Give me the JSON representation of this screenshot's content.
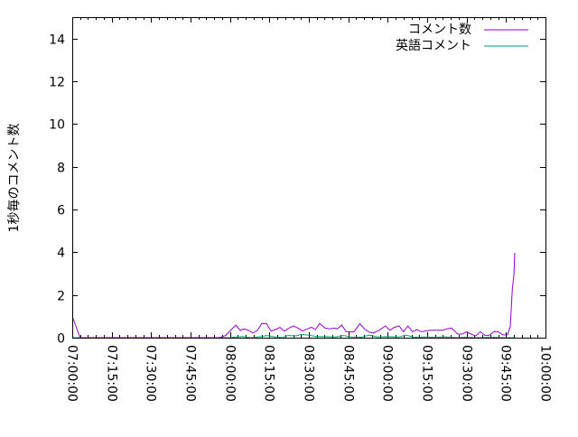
{
  "chart_data": {
    "type": "line",
    "title": "",
    "xlabel": "",
    "ylabel": "1秒毎のコメント数",
    "xlim": [
      "07:00:00",
      "10:00:00"
    ],
    "ylim": [
      0,
      15
    ],
    "xticks": [
      "07:00:00",
      "07:15:00",
      "07:30:00",
      "07:45:00",
      "08:00:00",
      "08:15:00",
      "08:30:00",
      "08:45:00",
      "09:00:00",
      "09:15:00",
      "09:30:00",
      "09:45:00",
      "10:00:00"
    ],
    "yticks": [
      "0",
      "2",
      "4",
      "6",
      "8",
      "10",
      "12",
      "14"
    ],
    "grid": false,
    "legend_position": "top-right",
    "series": [
      {
        "name": "コメント数",
        "color": "#9400d3",
        "points": [
          [
            "07:00:00",
            1.0
          ],
          [
            "07:03:00",
            0
          ],
          [
            "07:56:00",
            0
          ],
          [
            "07:58:24",
            0.1
          ],
          [
            "08:00:30",
            0.38
          ],
          [
            "08:02:12",
            0.59
          ],
          [
            "08:03:54",
            0.34
          ],
          [
            "08:05:18",
            0.41
          ],
          [
            "08:07:00",
            0.35
          ],
          [
            "08:08:42",
            0.22
          ],
          [
            "08:10:24",
            0.34
          ],
          [
            "08:12:06",
            0.66
          ],
          [
            "08:13:54",
            0.66
          ],
          [
            "08:15:36",
            0.31
          ],
          [
            "08:17:18",
            0.38
          ],
          [
            "08:19:00",
            0.48
          ],
          [
            "08:20:42",
            0.31
          ],
          [
            "08:22:24",
            0.45
          ],
          [
            "08:24:12",
            0.55
          ],
          [
            "08:25:54",
            0.45
          ],
          [
            "08:27:36",
            0.31
          ],
          [
            "08:29:18",
            0.41
          ],
          [
            "08:31:00",
            0.49
          ],
          [
            "08:32:30",
            0.38
          ],
          [
            "08:34:06",
            0.66
          ],
          [
            "08:36:12",
            0.45
          ],
          [
            "08:37:54",
            0.41
          ],
          [
            "08:39:36",
            0.45
          ],
          [
            "08:40:48",
            0.41
          ],
          [
            "08:42:30",
            0.59
          ],
          [
            "08:44:12",
            0.28
          ],
          [
            "08:47:06",
            0.27
          ],
          [
            "08:49:24",
            0.66
          ],
          [
            "08:51:06",
            0.42
          ],
          [
            "08:52:48",
            0.27
          ],
          [
            "08:54:30",
            0.21
          ],
          [
            "08:56:48",
            0.35
          ],
          [
            "08:59:06",
            0.55
          ],
          [
            "09:00:48",
            0.35
          ],
          [
            "09:02:30",
            0.48
          ],
          [
            "09:04:18",
            0.55
          ],
          [
            "09:06:00",
            0.28
          ],
          [
            "09:07:42",
            0.55
          ],
          [
            "09:09:24",
            0.28
          ],
          [
            "09:11:06",
            0.38
          ],
          [
            "09:12:48",
            0.28
          ],
          [
            "09:16:18",
            0.35
          ],
          [
            "09:20:48",
            0.35
          ],
          [
            "09:22:36",
            0.42
          ],
          [
            "09:24:18",
            0.45
          ],
          [
            "09:26:36",
            0.17
          ],
          [
            "09:28:18",
            0.17
          ],
          [
            "09:30:00",
            0.28
          ],
          [
            "09:31:42",
            0.17
          ],
          [
            "09:33:24",
            0.08
          ],
          [
            "09:35:12",
            0.28
          ],
          [
            "09:36:54",
            0.11
          ],
          [
            "09:38:36",
            0.11
          ],
          [
            "09:40:18",
            0.28
          ],
          [
            "09:42:00",
            0.28
          ],
          [
            "09:43:48",
            0.13
          ],
          [
            "09:45:30",
            0.13
          ],
          [
            "09:46:36",
            0.52
          ],
          [
            "09:47:24",
            2.28
          ],
          [
            "09:48:00",
            2.98
          ],
          [
            "09:48:18",
            3.97
          ]
        ]
      },
      {
        "name": "英語コメント",
        "color": "#009e73",
        "points": [
          [
            "07:00:00",
            0
          ],
          [
            "08:00:00",
            0
          ],
          [
            "08:02:00",
            0.03
          ],
          [
            "08:05:00",
            0.05
          ],
          [
            "08:08:00",
            0
          ],
          [
            "08:12:00",
            0.05
          ],
          [
            "08:14:00",
            0.1
          ],
          [
            "08:17:00",
            0.04
          ],
          [
            "08:20:00",
            0
          ],
          [
            "08:22:00",
            0.1
          ],
          [
            "08:25:00",
            0.08
          ],
          [
            "08:27:00",
            0.15
          ],
          [
            "08:30:00",
            0.12
          ],
          [
            "08:33:00",
            0.05
          ],
          [
            "08:36:00",
            0.05
          ],
          [
            "08:40:00",
            0.03
          ],
          [
            "08:43:00",
            0.1
          ],
          [
            "08:46:00",
            0.04
          ],
          [
            "08:50:00",
            0.02
          ],
          [
            "08:53:00",
            0.12
          ],
          [
            "08:56:00",
            0.04
          ],
          [
            "09:00:00",
            0.05
          ],
          [
            "09:04:00",
            0.03
          ],
          [
            "09:07:00",
            0.12
          ],
          [
            "09:10:00",
            0.02
          ],
          [
            "09:14:00",
            0.03
          ],
          [
            "09:18:00",
            0.02
          ],
          [
            "09:22:00",
            0.04
          ],
          [
            "09:26:00",
            0
          ],
          [
            "09:30:00",
            0.02
          ],
          [
            "09:34:00",
            0
          ],
          [
            "09:40:00",
            0.02
          ],
          [
            "09:45:00",
            0
          ],
          [
            "09:48:18",
            0
          ]
        ]
      }
    ]
  }
}
